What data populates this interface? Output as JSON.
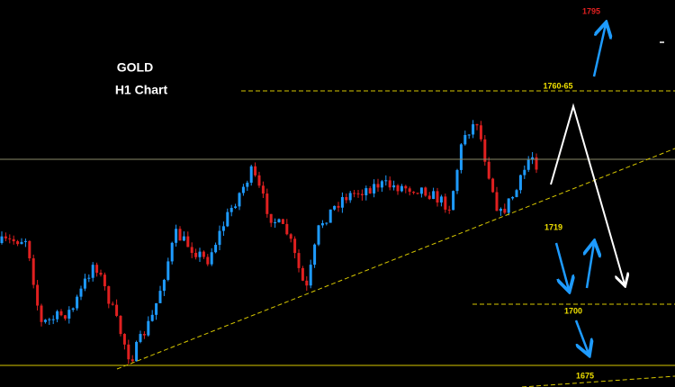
{
  "header": {
    "title": "GOLD",
    "subtitle": "H1 Chart"
  },
  "levels": [
    {
      "label": "1795"
    },
    {
      "label": "1760-65"
    },
    {
      "label": "1719"
    },
    {
      "label": "1700"
    },
    {
      "label": "1675"
    }
  ]
}
